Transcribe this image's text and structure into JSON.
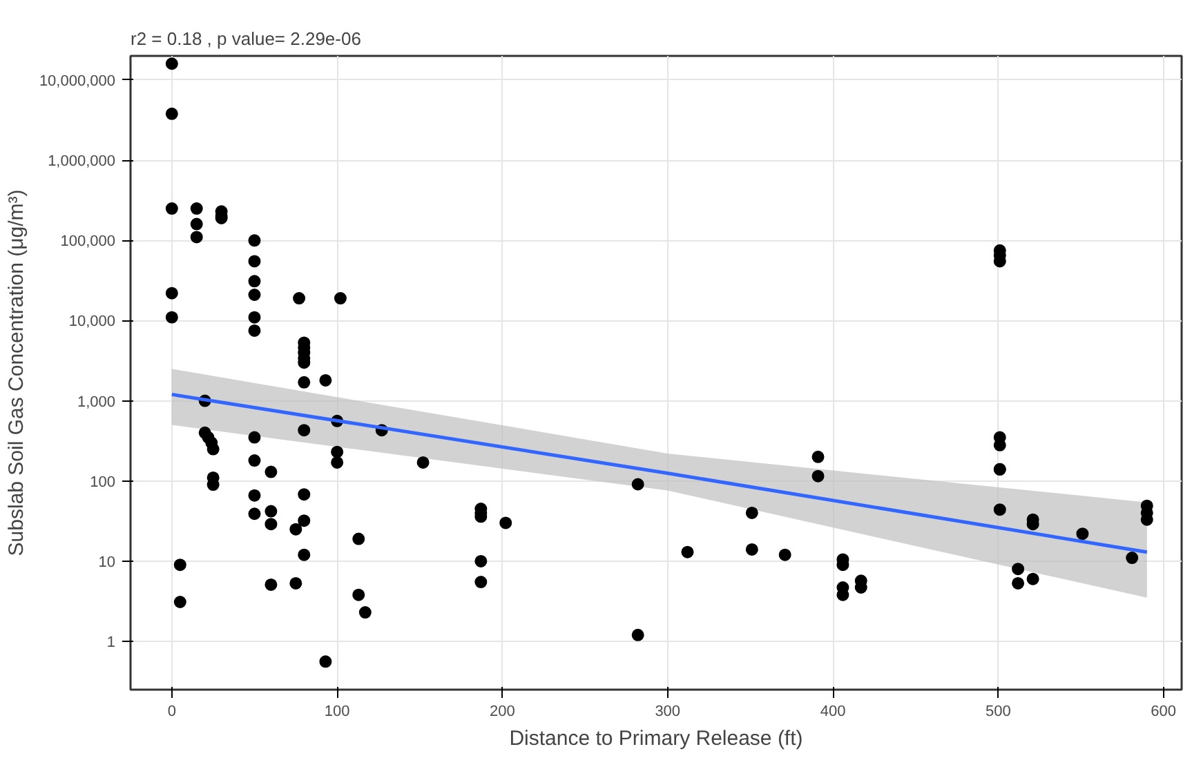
{
  "chart_data": {
    "type": "scatter",
    "title": "r2 = 0.18 , p value= 2.29e-06",
    "xlabel": "Distance to Primary Release (ft)",
    "ylabel": "Subslab Soil Gas Concentration (μg/m³)",
    "log": "y",
    "grid": true,
    "xlim": [
      -25,
      611
    ],
    "ylim": [
      0.25,
      20000000
    ],
    "xticks": [
      0,
      100,
      200,
      300,
      400,
      500,
      600
    ],
    "yticks": [
      {
        "value": 1,
        "label": "1"
      },
      {
        "value": 10,
        "label": "10"
      },
      {
        "value": 100,
        "label": "100"
      },
      {
        "value": 1000,
        "label": "1,000"
      },
      {
        "value": 10000,
        "label": "10,000"
      },
      {
        "value": 100000,
        "label": "100,000"
      },
      {
        "value": 1000000,
        "label": "1,000,000"
      },
      {
        "value": 10000000,
        "label": "10,000,000"
      }
    ],
    "series": [
      {
        "color": "#000000",
        "marker": "circle",
        "x": [
          0,
          0,
          0,
          0,
          0,
          5,
          5,
          15,
          15,
          15,
          20,
          20,
          22,
          24,
          25,
          25,
          25,
          30,
          30,
          30,
          50,
          50,
          50,
          50,
          50,
          50,
          50,
          50,
          50,
          50,
          60,
          60,
          60,
          60,
          75,
          75,
          77,
          80,
          80,
          80,
          80,
          80,
          80,
          80,
          80,
          80,
          80,
          93,
          93,
          100,
          100,
          100,
          102,
          113,
          113,
          117,
          127,
          152,
          187,
          187,
          187,
          187,
          187,
          202,
          282,
          282,
          312,
          351,
          351,
          371,
          391,
          391,
          406,
          406,
          406,
          406,
          417,
          417,
          501,
          501,
          501,
          501,
          501,
          501,
          501,
          501,
          512,
          512,
          521,
          521,
          521,
          551,
          581,
          590,
          590,
          590
        ],
        "values": [
          16000000,
          3800000,
          250000,
          22000,
          11000,
          9,
          3.1,
          250000,
          160000,
          110000,
          1000,
          400,
          350,
          300,
          250,
          110,
          90,
          230000,
          200000,
          190000,
          100000,
          55000,
          31000,
          21000,
          11000,
          7500,
          350,
          180,
          66,
          39,
          130,
          42,
          29,
          5.1,
          25,
          5.3,
          19000,
          5300,
          4600,
          4000,
          3400,
          3000,
          1700,
          430,
          68,
          32,
          12,
          1800,
          0.56,
          560,
          230,
          170,
          19000,
          19,
          3.8,
          2.3,
          430,
          170,
          45,
          40,
          36,
          10,
          5.5,
          30,
          91,
          1.2,
          13,
          40,
          14,
          12,
          200,
          115,
          10.5,
          9,
          4.7,
          3.8,
          5.7,
          4.7,
          75000,
          65000,
          55000,
          350,
          280,
          140,
          44,
          140,
          8,
          5.3,
          33,
          29,
          6,
          22,
          11,
          49,
          40,
          33
        ]
      },
      {
        "type": "line",
        "marker": "none",
        "color": "#3366ff",
        "x": [
          0,
          300,
          590
        ],
        "values": [
          1200,
          125,
          13
        ],
        "lower": [
          500,
          76,
          3.5
        ],
        "upper": [
          2500,
          220,
          54
        ]
      }
    ]
  }
}
